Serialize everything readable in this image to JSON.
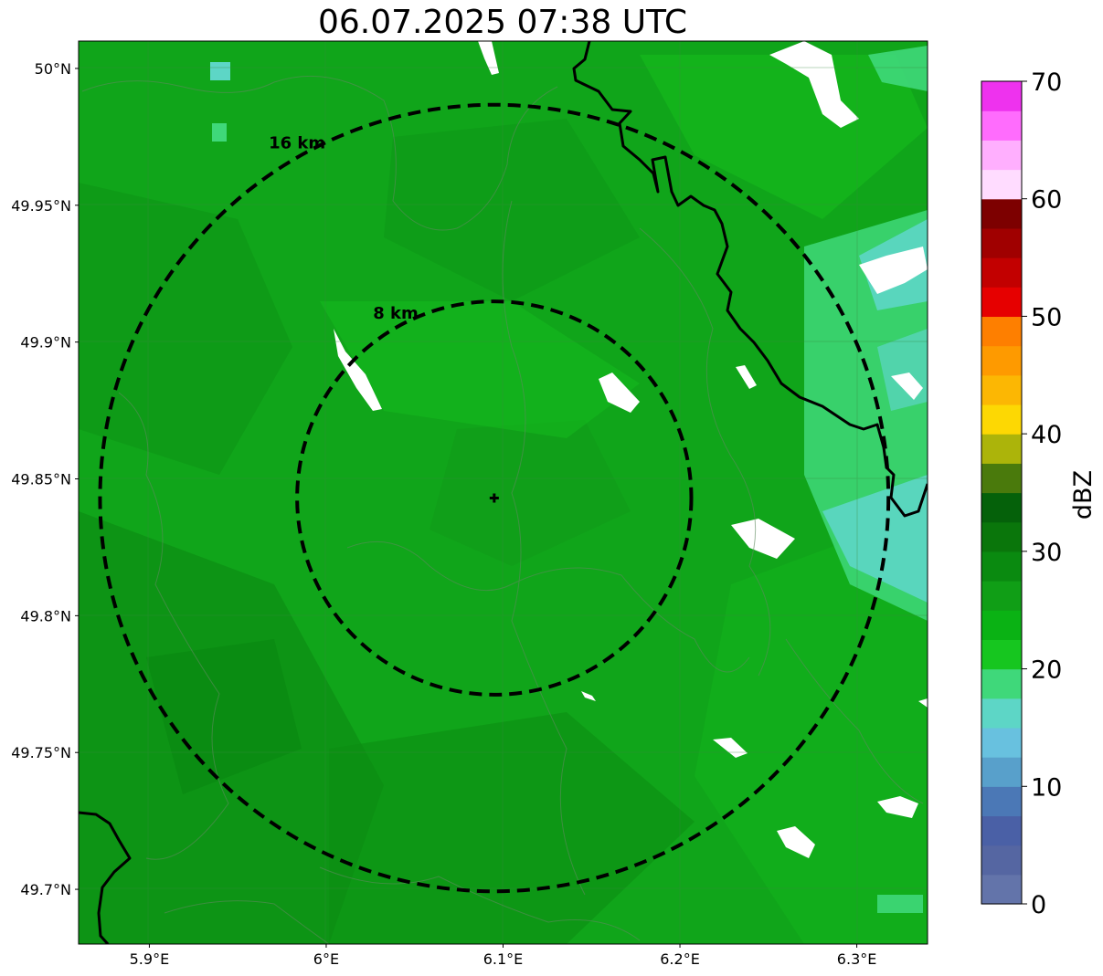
{
  "title": "06.07.2025 07:38 UTC",
  "map": {
    "lon_range": [
      5.86,
      6.34
    ],
    "lat_range": [
      49.68,
      50.01
    ],
    "lon_ticks": [
      {
        "value": 5.9,
        "label": "5.9°E"
      },
      {
        "value": 6.0,
        "label": "6°E"
      },
      {
        "value": 6.1,
        "label": "6.1°E"
      },
      {
        "value": 6.2,
        "label": "6.2°E"
      },
      {
        "value": 6.3,
        "label": "6.3°E"
      }
    ],
    "lat_ticks": [
      {
        "value": 50.0,
        "label": "50°N"
      },
      {
        "value": 49.95,
        "label": "49.95°N"
      },
      {
        "value": 49.9,
        "label": "49.9°N"
      },
      {
        "value": 49.85,
        "label": "49.85°N"
      },
      {
        "value": 49.8,
        "label": "49.8°N"
      },
      {
        "value": 49.75,
        "label": "49.75°N"
      },
      {
        "value": 49.7,
        "label": "49.7°N"
      }
    ],
    "center": {
      "lon": 6.095,
      "lat": 49.843
    },
    "rings": [
      {
        "radius_km": 8,
        "label": "8 km"
      },
      {
        "radius_km": 16,
        "label": "16 km"
      }
    ],
    "background_color": "#10a51a",
    "gridlines": true
  },
  "colorbar": {
    "label": "dBZ",
    "min": 0,
    "max": 70,
    "step": 2.5,
    "ticks": [
      {
        "value": 0,
        "label": "0"
      },
      {
        "value": 10,
        "label": "10"
      },
      {
        "value": 20,
        "label": "20"
      },
      {
        "value": 30,
        "label": "30"
      },
      {
        "value": 40,
        "label": "40"
      },
      {
        "value": 50,
        "label": "50"
      },
      {
        "value": 60,
        "label": "60"
      },
      {
        "value": 70,
        "label": "70"
      }
    ],
    "colors": [
      "#6374aa",
      "#5566a2",
      "#4a60a6",
      "#4b78b6",
      "#58a0cb",
      "#68c1df",
      "#5dd6c6",
      "#3fd87a",
      "#16c61f",
      "#0ab214",
      "#109e16",
      "#0a8a10",
      "#0a760b",
      "#05610a",
      "#4a7a0c",
      "#acb40a",
      "#fdd803",
      "#fcb703",
      "#fe9a00",
      "#fe7f00",
      "#e60000",
      "#c20000",
      "#a00000",
      "#7d0000",
      "#ffdcff",
      "#ffaffe",
      "#ff6cfd",
      "#ee32ee"
    ]
  }
}
